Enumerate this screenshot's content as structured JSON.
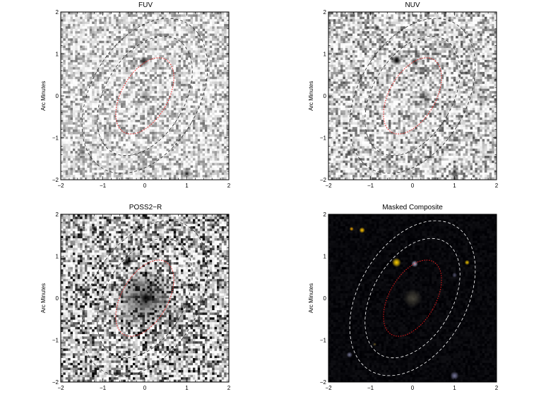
{
  "panels": [
    {
      "id": "fuv",
      "title": "FUV",
      "ylabel": "Arc Minutes",
      "style": "gray",
      "x_ticks": [
        "−2",
        "−1",
        "0",
        "1",
        "2"
      ],
      "y_ticks": [
        "−2",
        "−1",
        "0",
        "1",
        "2"
      ],
      "xlim": [
        -2,
        2
      ],
      "ylim": [
        -2,
        2
      ],
      "noise_level": 0.25,
      "sources": [
        {
          "x": -0.02,
          "y": 0.82,
          "r": 0.13,
          "strength": 0.75
        },
        {
          "x": 0.02,
          "y": 0.0,
          "r": 0.15,
          "strength": 0.35
        },
        {
          "x": -1.5,
          "y": -1.35,
          "r": 0.1,
          "strength": 0.5
        },
        {
          "x": 1.0,
          "y": -1.85,
          "r": 0.12,
          "strength": 0.7
        }
      ]
    },
    {
      "id": "nuv",
      "title": "NUV",
      "ylabel": "Arc Minutes",
      "style": "gray",
      "x_ticks": [
        "−2",
        "−1",
        "0",
        "1",
        "2"
      ],
      "y_ticks": [
        "−2",
        "−1",
        "0",
        "1",
        "2"
      ],
      "xlim": [
        -2,
        2
      ],
      "ylim": [
        -2,
        2
      ],
      "noise_level": 0.3,
      "sources": [
        {
          "x": -0.38,
          "y": 0.85,
          "r": 0.13,
          "strength": 1.0
        },
        {
          "x": 0.05,
          "y": 0.82,
          "r": 0.1,
          "strength": 0.75
        },
        {
          "x": -0.85,
          "y": 1.62,
          "r": 0.08,
          "strength": 0.8
        },
        {
          "x": -1.1,
          "y": 1.62,
          "r": 0.06,
          "strength": 0.6
        },
        {
          "x": -1.5,
          "y": 1.6,
          "r": 0.05,
          "strength": 0.5
        },
        {
          "x": 0.3,
          "y": 0.0,
          "r": 0.17,
          "strength": 0.4
        },
        {
          "x": -1.5,
          "y": -1.35,
          "r": 0.09,
          "strength": 0.6
        },
        {
          "x": 1.28,
          "y": 0.55,
          "r": 0.05,
          "strength": 0.5
        },
        {
          "x": 1.6,
          "y": 0.15,
          "r": 0.05,
          "strength": 0.4
        },
        {
          "x": 1.0,
          "y": -1.85,
          "r": 0.1,
          "strength": 0.7
        }
      ]
    },
    {
      "id": "poss",
      "title": "POSS2−R",
      "ylabel": "Arc Minutes",
      "style": "gray",
      "x_ticks": [
        "−2",
        "−1",
        "0",
        "1",
        "2"
      ],
      "y_ticks": [
        "−2",
        "−1",
        "0",
        "1",
        "2"
      ],
      "xlim": [
        -2,
        2
      ],
      "ylim": [
        -2,
        2
      ],
      "noise_level": 0.45,
      "sources": [
        {
          "x": 0.0,
          "y": 0.0,
          "r": 0.75,
          "strength": 0.55
        },
        {
          "x": 0.02,
          "y": 0.0,
          "r": 0.14,
          "strength": 1.0
        },
        {
          "x": -0.42,
          "y": 0.85,
          "r": 0.12,
          "strength": 1.0
        },
        {
          "x": -1.2,
          "y": 1.65,
          "r": 0.07,
          "strength": 1.0
        },
        {
          "x": -1.45,
          "y": 1.68,
          "r": 0.04,
          "strength": 0.8
        },
        {
          "x": 1.62,
          "y": 1.7,
          "r": 0.05,
          "strength": 0.9
        },
        {
          "x": 1.28,
          "y": 0.85,
          "r": 0.06,
          "strength": 0.9
        },
        {
          "x": 1.5,
          "y": 0.65,
          "r": 0.05,
          "strength": 0.9
        },
        {
          "x": -1.6,
          "y": -1.0,
          "r": 0.05,
          "strength": 0.9
        },
        {
          "x": -0.82,
          "y": 0.82,
          "r": 0.04,
          "strength": 0.7
        },
        {
          "x": 1.25,
          "y": 0.45,
          "r": 0.03,
          "strength": 0.6
        },
        {
          "x": 1.3,
          "y": -0.45,
          "r": 0.03,
          "strength": 0.5
        }
      ]
    },
    {
      "id": "composite",
      "title": "Masked Composite",
      "ylabel": "Arc Minutes",
      "style": "dark",
      "x_ticks": [
        "−2",
        "−1",
        "0",
        "1",
        "2"
      ],
      "y_ticks": [
        "−2",
        "−1",
        "0",
        "1",
        "2"
      ],
      "xlim": [
        -2,
        2
      ],
      "ylim": [
        -2,
        2
      ],
      "noise_level": 0.2,
      "sources": [
        {
          "x": -0.38,
          "y": 0.85,
          "r": 0.11,
          "strength": 1.0,
          "color": "#ffd000"
        },
        {
          "x": 0.05,
          "y": 0.82,
          "r": 0.08,
          "strength": 0.85,
          "color": "#c8c8e8"
        },
        {
          "x": -1.2,
          "y": 1.62,
          "r": 0.07,
          "strength": 1.0,
          "color": "#ffc400"
        },
        {
          "x": -1.45,
          "y": 1.65,
          "r": 0.05,
          "strength": 0.9,
          "color": "#ffb000"
        },
        {
          "x": 1.3,
          "y": 0.85,
          "r": 0.06,
          "strength": 0.9,
          "color": "#ffd000"
        },
        {
          "x": 0.0,
          "y": 0.0,
          "r": 0.22,
          "strength": 0.35,
          "color": "#b8b090"
        },
        {
          "x": 1.0,
          "y": 0.55,
          "r": 0.06,
          "strength": 0.5,
          "color": "#9090c0"
        },
        {
          "x": -1.5,
          "y": -1.35,
          "r": 0.07,
          "strength": 0.7,
          "color": "#9fa0c8"
        },
        {
          "x": 1.0,
          "y": -1.85,
          "r": 0.1,
          "strength": 0.7,
          "color": "#a0a0d0"
        },
        {
          "x": -0.9,
          "y": -1.1,
          "r": 0.04,
          "strength": 0.5,
          "color": "#c0a040"
        }
      ]
    }
  ],
  "ellipses": {
    "angle_deg": 30,
    "inner": {
      "a": 1.0,
      "b": 0.55
    },
    "middle": {
      "a": 1.55,
      "b": 0.95
    },
    "outer": {
      "a": 2.0,
      "b": 1.28
    },
    "inner_color": "#ee1c1c",
    "dashed_color_light": "#222222",
    "dashed_color_dark": "#ffffff"
  },
  "colors": {
    "gray_background": "#d2d2d2",
    "dark_background": "#050505"
  }
}
